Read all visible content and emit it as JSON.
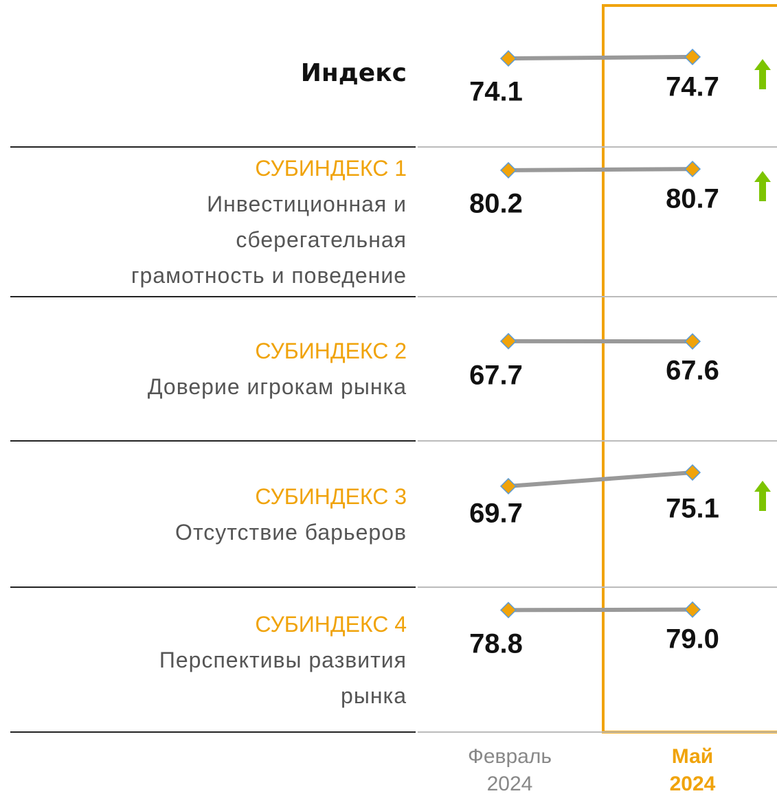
{
  "chart_data": {
    "type": "slope",
    "categories": [
      [
        "Февраль",
        "2024"
      ],
      [
        "Май",
        "2024"
      ]
    ],
    "highlight": 1,
    "line_color": "#999999",
    "marker_color": "#f0a30a",
    "marker_edge_color": "#5b9bd5",
    "highlight_color": "#f0a30a",
    "arrow_color": "#7dc400",
    "series": [
      {
        "name": "Индекс",
        "values": [
          74.1,
          74.7
        ],
        "arrow": true
      },
      {
        "name": "СУБИНДЕКС 1",
        "description": [
          "Инвестиционная и",
          "сберегательная",
          "грамотность и поведение"
        ],
        "values": [
          80.2,
          80.7
        ],
        "arrow": true
      },
      {
        "name": "СУБИНДЕКС 2",
        "description": [
          "Доверие игрокам рынка"
        ],
        "values": [
          67.7,
          67.6
        ],
        "arrow": false
      },
      {
        "name": "СУБИНДЕКС 3",
        "description": [
          "Отсутствие барьеров"
        ],
        "values": [
          69.7,
          75.1
        ],
        "arrow": true
      },
      {
        "name": "СУБИНДЕКС 4",
        "description": [
          "Перспективы развития",
          "рынка"
        ],
        "values": [
          78.8,
          79.0
        ],
        "value_labels": [
          "78.8",
          "79.0"
        ],
        "arrow": false
      }
    ]
  }
}
